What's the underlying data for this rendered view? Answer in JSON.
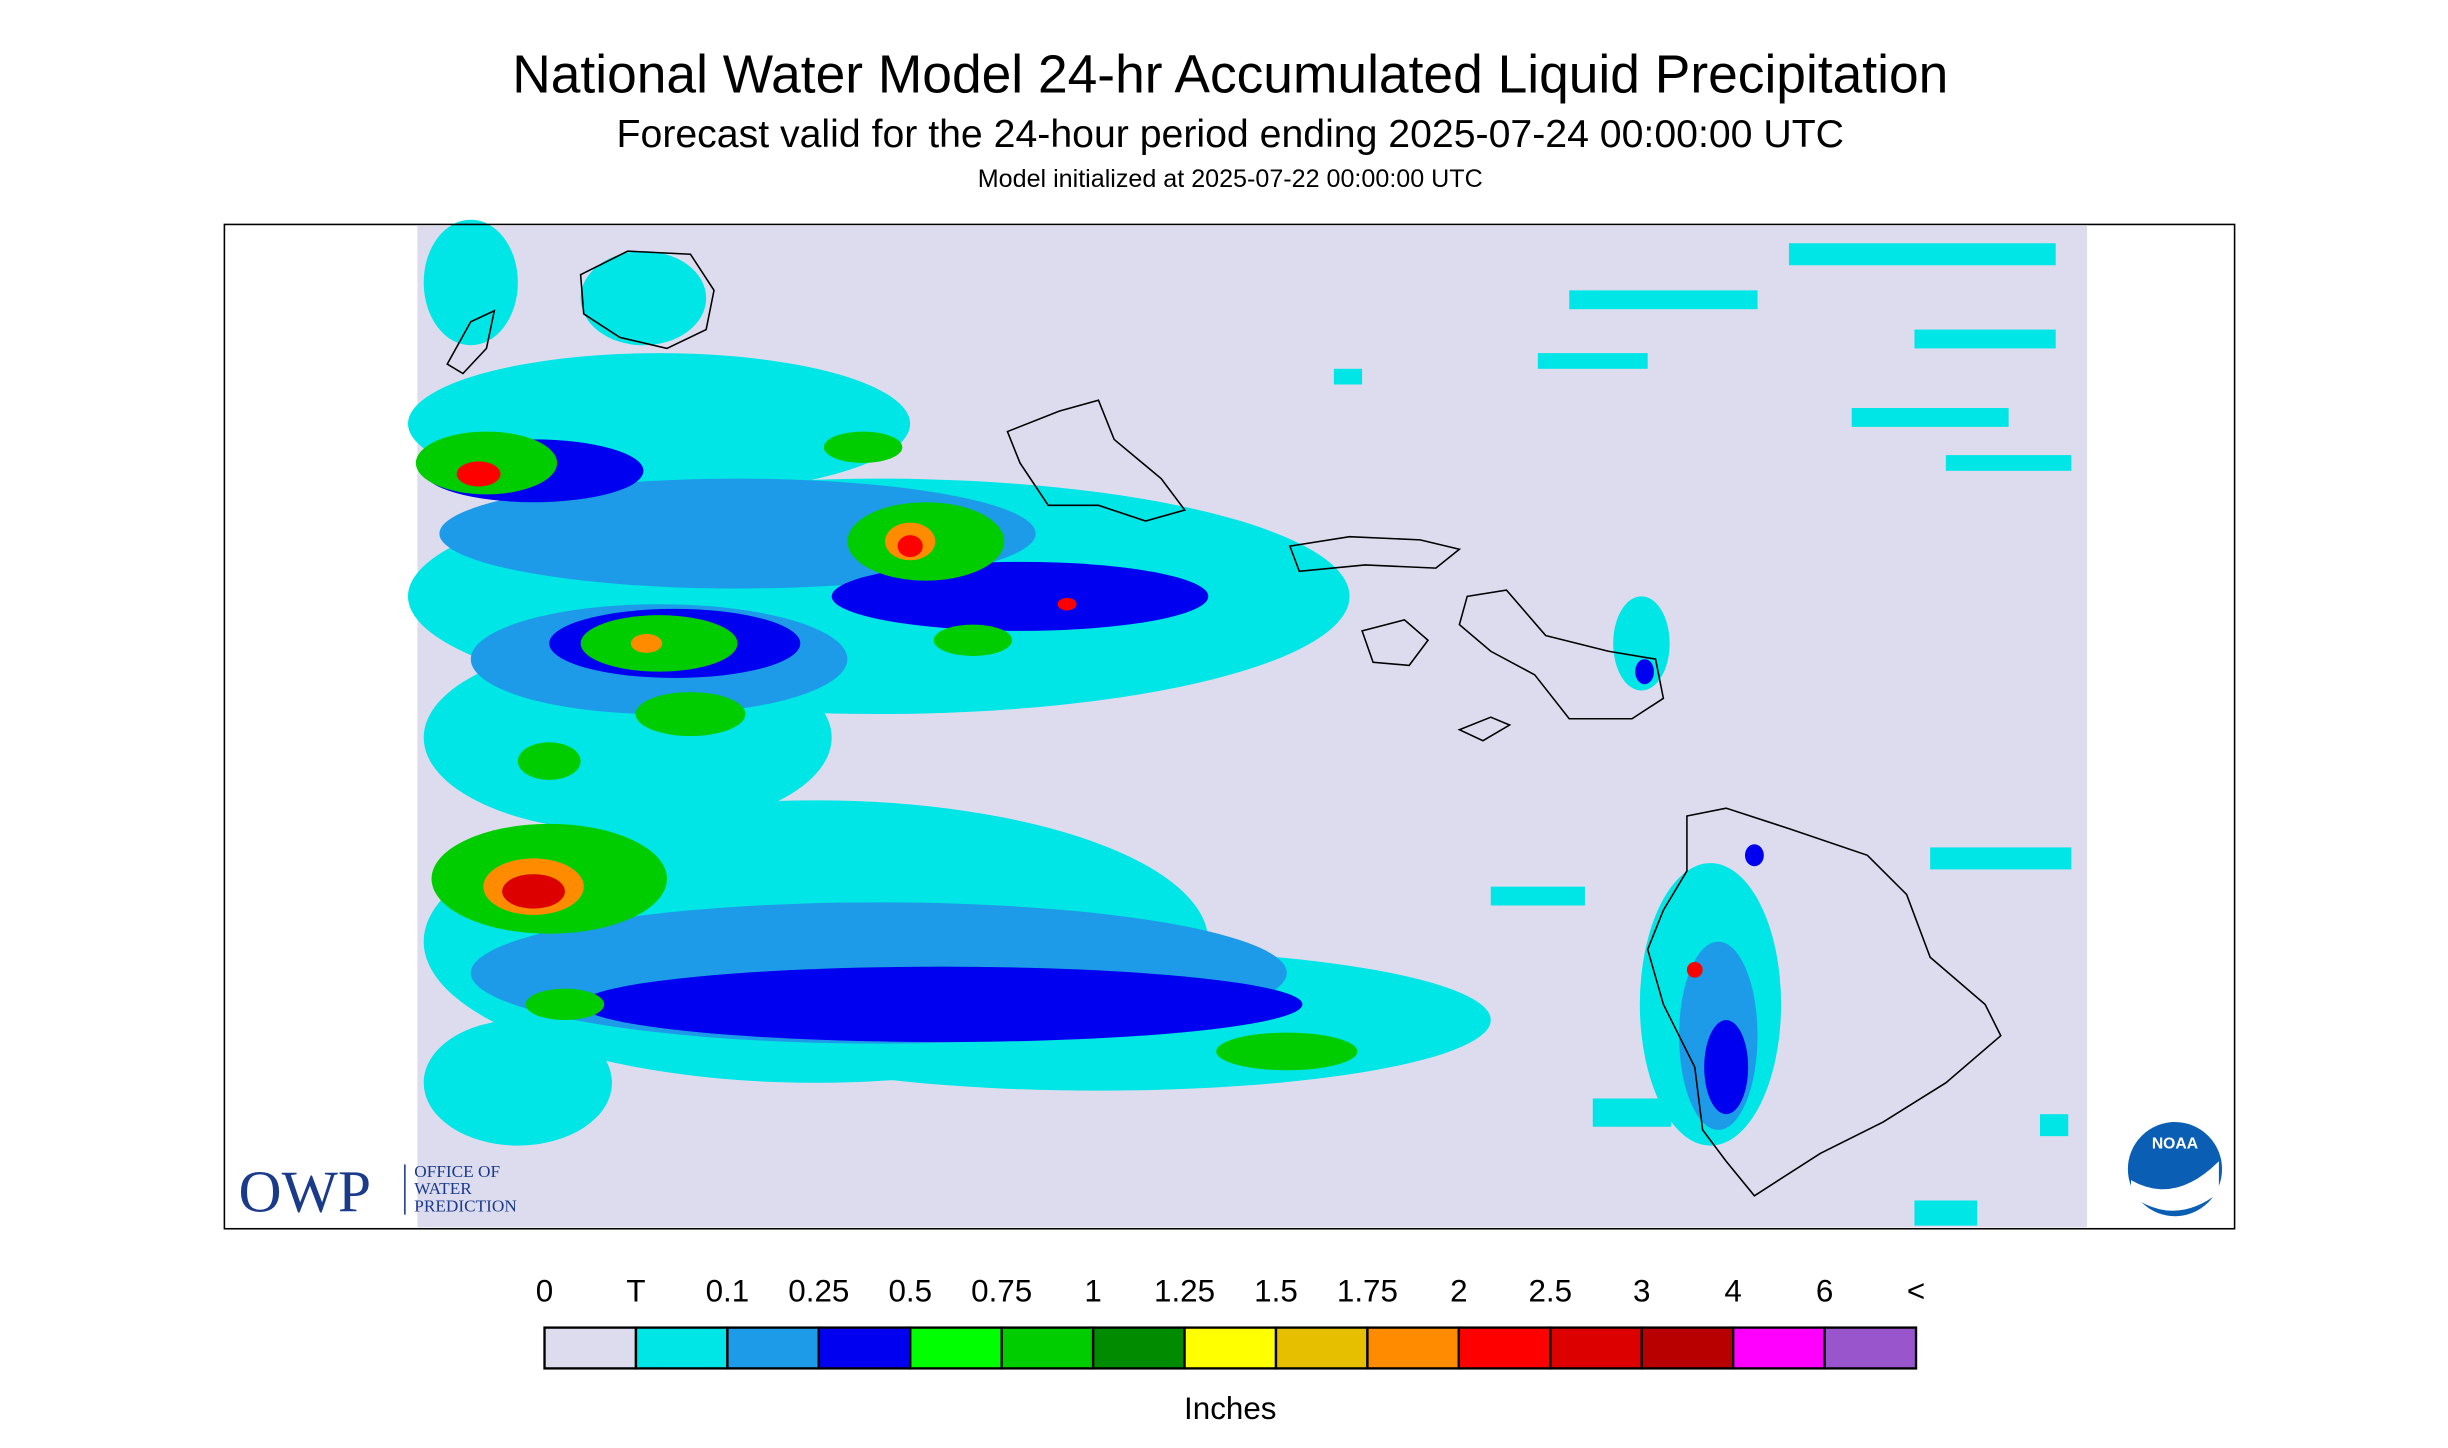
{
  "header": {
    "title": "National Water Model 24-hr Accumulated Liquid Precipitation",
    "subtitle": "Forecast valid for the 24-hour period ending 2025-07-24 00:00:00 UTC",
    "init": "Model initialized at 2025-07-22 00:00:00 UTC"
  },
  "logos": {
    "owp": "OWP",
    "owp_lines": [
      "OFFICE OF",
      "WATER",
      "PREDICTION"
    ],
    "noaa": "NOAA"
  },
  "legend": {
    "labels": [
      "0",
      "T",
      "0.1",
      "0.25",
      "0.5",
      "0.75",
      "1",
      "1.25",
      "1.5",
      "1.75",
      "2",
      "2.5",
      "3",
      "4",
      "6",
      "<"
    ],
    "colors": [
      "#dcdcee",
      "#00e5e5",
      "#1e9be8",
      "#0000f0",
      "#00ff00",
      "#00cd00",
      "#008b00",
      "#ffff00",
      "#e6c000",
      "#ff8c00",
      "#ff0000",
      "#dd0000",
      "#b80000",
      "#ff00ff",
      "#9955cc"
    ],
    "unit": "Inches"
  }
}
